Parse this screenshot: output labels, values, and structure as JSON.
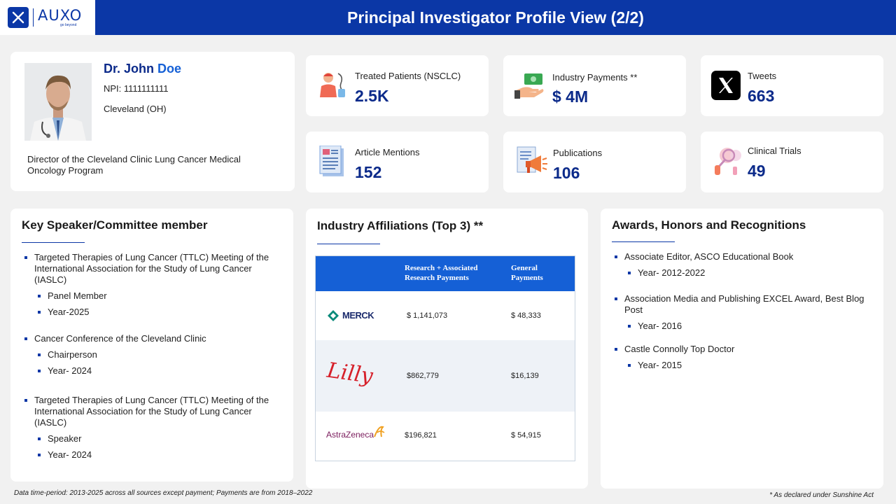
{
  "header": {
    "logo_text": "AUXO",
    "logo_tagline": "go beyond",
    "title": "Principal Investigator Profile View (2/2)",
    "bg_color": "#0b37a6"
  },
  "profile": {
    "name_first": "Dr. John",
    "name_last": "Doe",
    "npi": "NPI: 1111111111",
    "location": "Cleveland (OH)",
    "role": "Director of the Cleveland Clinic Lung Cancer Medical Oncology Program"
  },
  "stats": [
    {
      "label": "Treated Patients (NSCLC)",
      "value": "2.5K",
      "icon": "patient-icon"
    },
    {
      "label": "Industry Payments **",
      "value": "$ 4M",
      "icon": "money-hand-icon"
    },
    {
      "label": "Tweets",
      "value": "663",
      "icon": "x-logo-icon"
    },
    {
      "label": "Article Mentions",
      "value": "152",
      "icon": "article-icon"
    },
    {
      "label": "Publications",
      "value": "106",
      "icon": "publications-icon"
    },
    {
      "label": "Clinical Trials",
      "value": "49",
      "icon": "clinical-trials-icon"
    }
  ],
  "speaker": {
    "title": "Key Speaker/Committee member",
    "items": [
      {
        "text": "Targeted Therapies of Lung Cancer (TTLC) Meeting of the International Association for the Study of Lung Cancer (IASLC)",
        "sub": [
          "Panel Member",
          "Year-2025"
        ]
      },
      {
        "text": "Cancer Conference of the Cleveland Clinic",
        "sub": [
          "Chairperson",
          "Year- 2024"
        ]
      },
      {
        "text": "Targeted Therapies of Lung Cancer (TTLC) Meeting of the International Association for the Study of Lung Cancer (IASLC)",
        "sub": [
          "Speaker",
          "Year- 2024"
        ]
      }
    ]
  },
  "affiliations": {
    "title": "Industry Affiliations (Top 3) **",
    "columns": [
      "Research + Associated Research Payments",
      "General Payments"
    ],
    "rows": [
      {
        "company": "MERCK",
        "research": "$ 1,141,073",
        "general": "$ 48,333"
      },
      {
        "company": "Lilly",
        "research": "$862,779",
        "general": "$16,139"
      },
      {
        "company": "AstraZeneca",
        "research": "$196,821",
        "general": "$ 54,915"
      }
    ]
  },
  "awards": {
    "title": "Awards, Honors and Recognitions",
    "items": [
      {
        "text": "Associate Editor, ASCO Educational Book",
        "sub": [
          "Year-  2012-2022"
        ]
      },
      {
        "text": "Association Media and Publishing EXCEL Award, Best Blog Post",
        "sub": [
          "Year- 2016"
        ]
      },
      {
        "text": "Castle Connolly Top Doctor",
        "sub": [
          "Year- 2015"
        ]
      }
    ]
  },
  "footer": {
    "left": "Data time-period: 2013-2025 across all sources except payment; Payments are from 2018–2022",
    "right": "* As declared under Sunshine Act"
  }
}
